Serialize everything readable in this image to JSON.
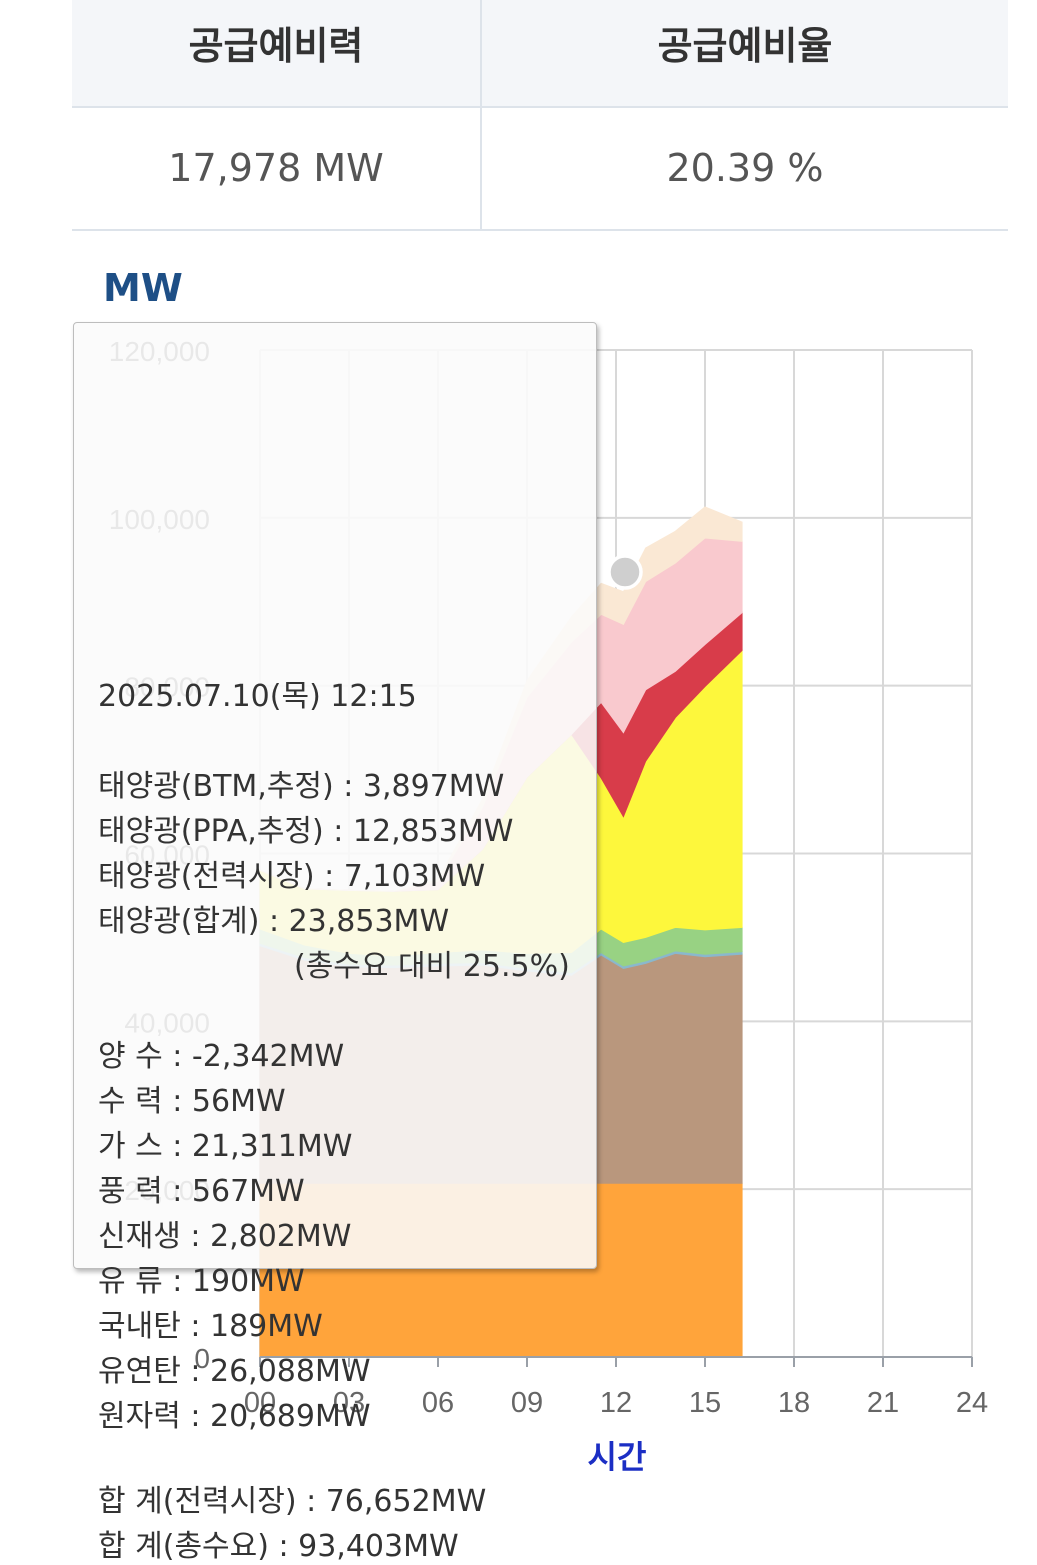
{
  "summary": {
    "headers": [
      "공급예비력",
      "공급예비율"
    ],
    "values": [
      "17,978 MW",
      "20.39 %"
    ]
  },
  "chart_data": {
    "type": "area",
    "stacked": true,
    "ylabel": "MW",
    "xlabel": "시간",
    "ylim": [
      0,
      120000
    ],
    "xlim": [
      0,
      24
    ],
    "yticks": [
      "0",
      "20,000",
      "40,000",
      "60,000",
      "80,000",
      "100,000",
      "120,000"
    ],
    "xticks": [
      "00",
      "03",
      "06",
      "09",
      "12",
      "15",
      "18",
      "21",
      "24"
    ],
    "x": [
      0,
      1.5,
      3,
      4.5,
      6,
      7.5,
      9,
      10.5,
      11.5,
      12.25,
      13,
      14,
      15,
      16.25
    ],
    "series": [
      {
        "color": "#ffa43b",
        "values": [
          20700,
          20700,
          20700,
          20700,
          20700,
          20700,
          20700,
          20700,
          20700,
          20700,
          20700,
          20700,
          20700,
          20700
        ]
      },
      {
        "color": "#b9977d",
        "values": [
          28300,
          26600,
          25800,
          25700,
          25900,
          26000,
          25300,
          24800,
          27200,
          25600,
          26200,
          27400,
          27000,
          27300
        ]
      },
      {
        "color": "#8ab8cc",
        "values": [
          300,
          300,
          300,
          300,
          300,
          300,
          300,
          300,
          300,
          300,
          300,
          300,
          300,
          300
        ]
      },
      {
        "color": "#98d283",
        "values": [
          1700,
          1500,
          1300,
          1100,
          1300,
          1500,
          1800,
          2400,
          2800,
          2800,
          2800,
          2800,
          2900,
          2900
        ]
      },
      {
        "color": "#fdf73c",
        "values": [
          7000,
          6700,
          7500,
          7700,
          7500,
          12000,
          21000,
          26000,
          18000,
          15000,
          21000,
          25000,
          29000,
          33000
        ]
      },
      {
        "color": "#d83c4a",
        "values": [
          0,
          0,
          0,
          0,
          0,
          0,
          0,
          0,
          9000,
          10000,
          8500,
          5500,
          5000,
          4500
        ]
      },
      {
        "color": "#f9c9ce",
        "values": [
          0,
          0,
          0,
          0,
          1000,
          5000,
          9500,
          11000,
          10500,
          12900,
          12900,
          12900,
          12700,
          8500
        ]
      },
      {
        "color": "#fae8d4",
        "values": [
          0,
          0,
          0,
          0,
          200,
          1000,
          2000,
          3000,
          3700,
          3900,
          4000,
          3800,
          3700,
          2300
        ]
      }
    ]
  },
  "tooltip": {
    "time": "2025.07.10(목) 12:15",
    "lines": [
      "태양광(BTM,추정) : 3,897MW",
      "태양광(PPA,추정) : 12,853MW",
      "태양광(전력시장) : 7,103MW",
      "태양광(합계) : 23,853MW",
      "(총수요 대비 25.5%)",
      "양    수 : -2,342MW",
      "수    력 : 56MW",
      "가    스 : 21,311MW",
      "풍    력 : 567MW",
      "신재생 : 2,802MW",
      "유    류 : 190MW",
      "국내탄 : 189MW",
      "유연탄 : 26,088MW",
      "원자력 : 20,689MW",
      "합    계(전력시장) : 76,652MW",
      "합    계(총수요) : 93,403MW"
    ]
  }
}
